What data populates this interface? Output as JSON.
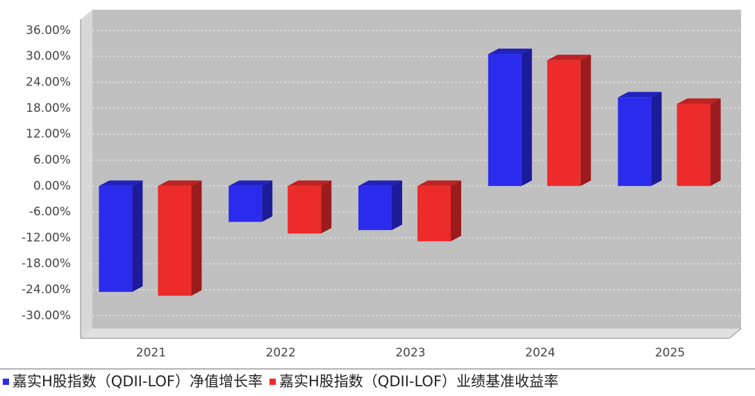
{
  "chart_data": {
    "type": "bar",
    "categories": [
      "2021",
      "2022",
      "2023",
      "2024",
      "2025"
    ],
    "series": [
      {
        "name": "嘉实H股指数（QDII-LOF）净值增长率",
        "color": "#2b2bee",
        "values": [
          -24.5,
          -8.3,
          -10.2,
          30.5,
          20.5
        ]
      },
      {
        "name": "嘉实H股指数（QDII-LOF）业绩基准收益率",
        "color": "#ee2b2b",
        "values": [
          -25.4,
          -11.0,
          -12.8,
          29.1,
          19.0
        ]
      }
    ],
    "ylim": [
      -33,
      40.8
    ],
    "yticks": [
      {
        "value": -30,
        "label": "-30.00%"
      },
      {
        "value": -24,
        "label": "-24.00%"
      },
      {
        "value": -18,
        "label": "-18.00%"
      },
      {
        "value": -12,
        "label": "-12.00%"
      },
      {
        "value": -6,
        "label": "-6.00%"
      },
      {
        "value": 0,
        "label": "0.00%"
      },
      {
        "value": 6,
        "label": "6.00%"
      },
      {
        "value": 12,
        "label": "12.00%"
      },
      {
        "value": 18,
        "label": "18.00%"
      },
      {
        "value": 24,
        "label": "24.00%"
      },
      {
        "value": 30,
        "label": "30.00%"
      },
      {
        "value": 36,
        "label": "36.00%"
      }
    ],
    "grid": true
  }
}
